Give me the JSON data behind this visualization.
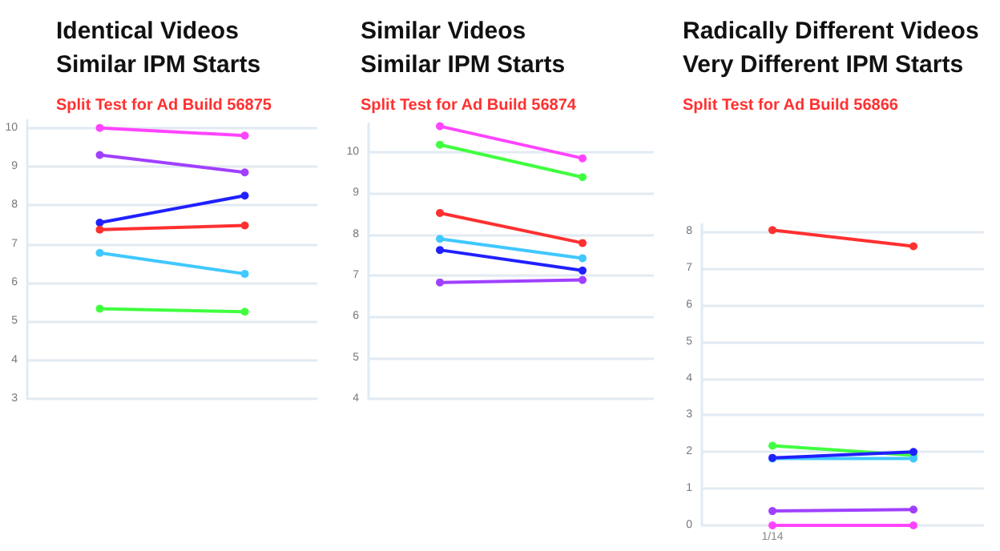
{
  "chart_data": [
    {
      "type": "line",
      "title": "Identical Videos\nSimilar IPM Starts",
      "subtitle": "Split Test for Ad Build 56875",
      "categories": [
        null,
        null
      ],
      "ylim": [
        3,
        10.2
      ],
      "yticks": [
        3,
        4,
        5,
        6,
        7,
        8,
        9,
        10
      ],
      "grid": "y",
      "marker": "circle",
      "tick_labels": "y",
      "series": [
        {
          "color": "#ff44ff",
          "values": [
            10.0,
            9.8
          ]
        },
        {
          "color": "#a040ff",
          "values": [
            9.3,
            8.85
          ]
        },
        {
          "color": "#2020ff",
          "values": [
            7.55,
            8.25
          ]
        },
        {
          "color": "#ff3030",
          "values": [
            7.37,
            7.48
          ]
        },
        {
          "color": "#40c8ff",
          "values": [
            6.77,
            6.23
          ]
        },
        {
          "color": "#40ff40",
          "values": [
            5.33,
            5.25
          ]
        }
      ]
    },
    {
      "type": "line",
      "title": "Similar Videos\nSimilar IPM Starts",
      "subtitle": "Split Test for Ad Build 56874",
      "categories": [
        null,
        null
      ],
      "ylim": [
        4,
        10.7
      ],
      "yticks": [
        4,
        5,
        6,
        7,
        8,
        9,
        10
      ],
      "grid": "y",
      "marker": "circle",
      "tick_labels": "y",
      "series": [
        {
          "color": "#ff44ff",
          "values": [
            10.63,
            9.85
          ]
        },
        {
          "color": "#40ff40",
          "values": [
            10.18,
            9.39
          ]
        },
        {
          "color": "#ff3030",
          "values": [
            8.52,
            7.79
          ]
        },
        {
          "color": "#40c8ff",
          "values": [
            7.89,
            7.42
          ]
        },
        {
          "color": "#2020ff",
          "values": [
            7.62,
            7.12
          ]
        },
        {
          "color": "#a040ff",
          "values": [
            6.83,
            6.89
          ]
        }
      ]
    },
    {
      "type": "line",
      "title": "Radically Different Videos\nVery Different IPM Starts",
      "subtitle": "Split Test for Ad Build 56866",
      "categories": [
        "1/14",
        null
      ],
      "ylim": [
        0,
        8.2
      ],
      "yticks": [
        0,
        1,
        2,
        3,
        4,
        5,
        6,
        7,
        8
      ],
      "grid": "y",
      "marker": "circle",
      "series": [
        {
          "color": "#ff3030",
          "values": [
            8.04,
            7.6
          ]
        },
        {
          "color": "#40ff40",
          "values": [
            2.17,
            1.91
          ]
        },
        {
          "color": "#40c8ff",
          "values": [
            1.82,
            1.82
          ]
        },
        {
          "color": "#2020ff",
          "values": [
            1.84,
            2.0
          ]
        },
        {
          "color": "#a040ff",
          "values": [
            0.39,
            0.43
          ]
        },
        {
          "color": "#ff44ff",
          "values": [
            0,
            0
          ]
        }
      ]
    }
  ]
}
